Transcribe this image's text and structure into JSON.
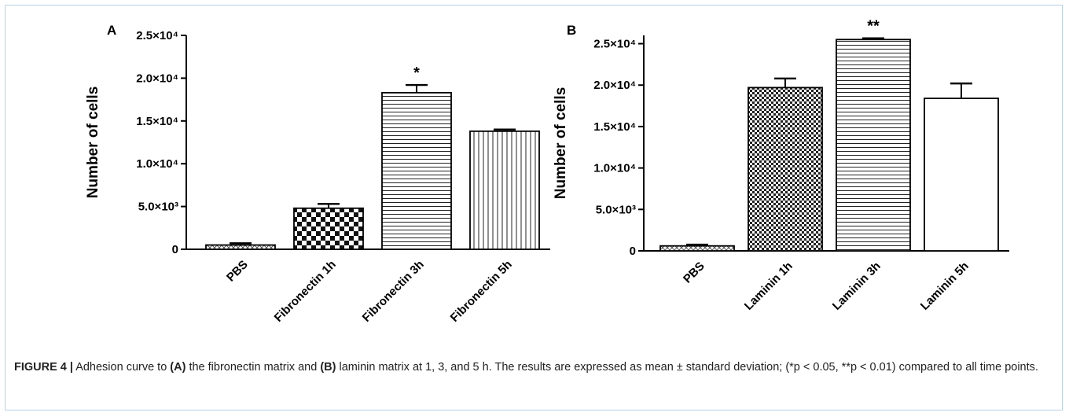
{
  "chart_data": [
    {
      "type": "bar",
      "panel_label": "A",
      "categories": [
        "PBS",
        "Fibronectin 1h",
        "Fibronectin 3h",
        "Fibronectin 5h"
      ],
      "values": [
        500,
        4800,
        18300,
        13800
      ],
      "errors": [
        200,
        500,
        900,
        200
      ],
      "patterns": [
        "pattern-crosshatch",
        "pattern-checker",
        "pattern-horizontal-lines",
        "pattern-vertical-lines"
      ],
      "significance": [
        "",
        "",
        "*",
        ""
      ],
      "ylabel": "Number of cells",
      "xlabel": "",
      "ylim": [
        0,
        25000
      ],
      "yticks": [
        0,
        5000,
        10000,
        15000,
        20000,
        25000
      ],
      "ytick_labels": [
        "0",
        "5.0×10³",
        "1.0×10⁴",
        "1.5×10⁴",
        "2.0×10⁴",
        "2.5×10⁴"
      ],
      "grid": false,
      "legend": "none"
    },
    {
      "type": "bar",
      "panel_label": "B",
      "categories": [
        "PBS",
        "Laminin 1h",
        "Laminin 3h",
        "Laminin 5h"
      ],
      "values": [
        600,
        19700,
        25500,
        18400
      ],
      "errors": [
        150,
        1100,
        150,
        1800
      ],
      "patterns": [
        "pattern-crosshatch",
        "pattern-fine-checker",
        "pattern-horizontal-lines",
        "pattern-solid-white"
      ],
      "significance": [
        "",
        "",
        "**",
        ""
      ],
      "ylabel": "Number of cells",
      "xlabel": "",
      "ylim": [
        0,
        26000
      ],
      "yticks": [
        0,
        5000,
        10000,
        15000,
        20000,
        25000
      ],
      "ytick_labels": [
        "0",
        "5.0×10³",
        "1.0×10⁴",
        "1.5×10⁴",
        "2.0×10⁴",
        "2.5×10⁴"
      ],
      "grid": false,
      "legend": "none"
    }
  ],
  "caption": {
    "label": "FIGURE 4 |",
    "t1": " Adhesion curve to ",
    "b1": "(A)",
    "t2": " the fibronectin matrix and ",
    "b2": "(B)",
    "t3": " laminin matrix at 1, 3, and 5 h. The results are expressed as mean ± standard deviation; (*p < 0.05, **p < 0.01) compared to all time points."
  }
}
